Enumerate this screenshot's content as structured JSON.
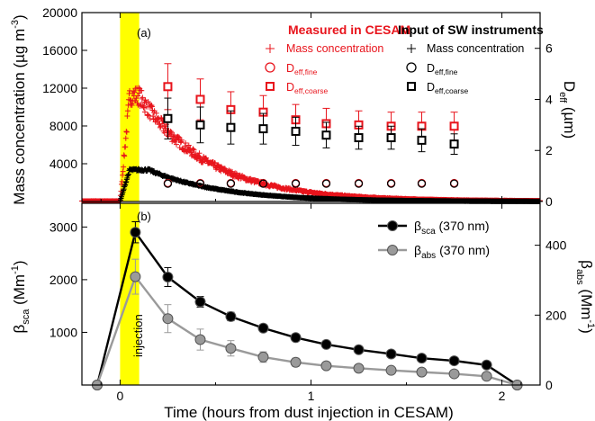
{
  "colors": {
    "measured": "#e8141c",
    "instrument": "#000000",
    "beta_abs": "#9a9a9a",
    "injection_band": "#ffff00"
  },
  "panel_a": {
    "tag": "(a)",
    "ylabel_left_text": "Mass concentration (µg m",
    "ylabel_left_sup": "-3",
    "ylabel_left_close": ")",
    "ylabel_right_main": "D",
    "ylabel_right_sub": "eff",
    "ylabel_right_unit": " (µm)",
    "legend_measured_title": "Measured in CESAM",
    "legend_input_title": "Input of SW instruments",
    "legend_mass": "Mass concentration",
    "legend_dfine_main": "D",
    "legend_dfine_sub": "eff,fine",
    "legend_dcoarse_main": "D",
    "legend_dcoarse_sub": "eff,coarse",
    "yticks_left": [
      "20000",
      "16000",
      "12000",
      "8000",
      "4000"
    ],
    "yticks_right": [
      "6",
      "4",
      "2",
      "0"
    ]
  },
  "panel_b": {
    "tag": "(b)",
    "ylabel_left_main": "β",
    "ylabel_left_sub": "sca",
    "ylabel_left_unit": " (Mm",
    "ylabel_left_sup": "-1",
    "ylabel_left_close": ")",
    "ylabel_right_main": "β",
    "ylabel_right_sub": "abs",
    "ylabel_right_unit": " (Mm",
    "ylabel_right_sup": "-1",
    "ylabel_right_close": ")",
    "legend_sca_main": "β",
    "legend_sca_sub": "sca",
    "legend_sca_rest": " (370 nm)",
    "legend_abs_main": "β",
    "legend_abs_sub": "abs",
    "legend_abs_rest": " (370 nm)",
    "injection_label": "injection",
    "yticks_left": [
      "3000",
      "2000",
      "1000"
    ],
    "yticks_right": [
      "400",
      "200",
      "0"
    ]
  },
  "xaxis": {
    "label": "Time (hours from dust injection in CESAM)",
    "ticks": [
      "0",
      "1",
      "2"
    ]
  },
  "chart_data": [
    {
      "type": "scatter",
      "panel": "a",
      "xlim": [
        -0.2,
        2.2
      ],
      "ylim_left": [
        0,
        20000
      ],
      "ylim_right": [
        0,
        7.4
      ],
      "injection_interval": [
        0,
        0.1
      ],
      "series": [
        {
          "name": "Mass concentration",
          "group": "Measured in CESAM",
          "axis": "left",
          "marker": "plus",
          "model": {
            "baseline": 50,
            "onset_start": 0.0,
            "onset_end": 0.05,
            "peak": 11200,
            "peak_time": 0.1,
            "decay_tau": 0.36,
            "sample_step": 0.0025,
            "noise": 0.09
          }
        },
        {
          "name": "Mass concentration",
          "group": "Input of SW instruments",
          "axis": "left",
          "marker": "plus",
          "model": {
            "baseline": 0,
            "onset_start": 0.0,
            "onset_end": 0.05,
            "peak": 3350,
            "peak_time": 0.15,
            "decay_tau": 0.38,
            "sample_step": 0.0025,
            "noise": 0.04
          }
        },
        {
          "name": "Deff,coarse",
          "group": "Measured in CESAM",
          "axis": "right",
          "marker": "square",
          "x": [
            0.25,
            0.42,
            0.58,
            0.75,
            0.92,
            1.08,
            1.25,
            1.42,
            1.58,
            1.75
          ],
          "y": [
            4.5,
            4.0,
            3.6,
            3.5,
            3.2,
            3.05,
            3.0,
            2.95,
            2.95,
            2.95
          ],
          "yerr": [
            0.9,
            0.8,
            0.7,
            0.65,
            0.6,
            0.6,
            0.55,
            0.55,
            0.55,
            0.55
          ]
        },
        {
          "name": "Deff,fine",
          "group": "Measured in CESAM",
          "axis": "right",
          "marker": "circle",
          "x": [
            0.25,
            0.42,
            0.58,
            0.75,
            0.92,
            1.08,
            1.25,
            1.42,
            1.58,
            1.75
          ],
          "y": [
            0.72,
            0.72,
            0.72,
            0.72,
            0.72,
            0.72,
            0.72,
            0.72,
            0.72,
            0.72
          ],
          "yerr": [
            0,
            0,
            0,
            0,
            0,
            0,
            0,
            0,
            0,
            0
          ]
        },
        {
          "name": "Deff,coarse",
          "group": "Input of SW instruments",
          "axis": "right",
          "marker": "square",
          "x": [
            0.25,
            0.42,
            0.58,
            0.75,
            0.92,
            1.08,
            1.25,
            1.42,
            1.58,
            1.75
          ],
          "y": [
            3.25,
            3.0,
            2.9,
            2.85,
            2.75,
            2.6,
            2.5,
            2.5,
            2.4,
            2.25
          ],
          "yerr": [
            0.8,
            0.7,
            0.65,
            0.6,
            0.55,
            0.5,
            0.45,
            0.45,
            0.45,
            0.4
          ]
        },
        {
          "name": "Deff,fine",
          "group": "Input of SW instruments",
          "axis": "right",
          "marker": "circle",
          "x": [
            0.25,
            0.42,
            0.58,
            0.75,
            0.92,
            1.08,
            1.25,
            1.42,
            1.58,
            1.75
          ],
          "y": [
            0.7,
            0.7,
            0.7,
            0.7,
            0.7,
            0.7,
            0.7,
            0.7,
            0.7,
            0.7
          ],
          "yerr": [
            0,
            0,
            0,
            0,
            0,
            0,
            0,
            0,
            0,
            0
          ]
        }
      ]
    },
    {
      "type": "line",
      "panel": "b",
      "xlim": [
        -0.2,
        2.2
      ],
      "ylim_left": [
        0,
        3450
      ],
      "ylim_right": [
        0,
        520
      ],
      "injection_interval": [
        0,
        0.1
      ],
      "series": [
        {
          "name": "βsca (370 nm)",
          "axis": "left",
          "x": [
            -0.12,
            0.08,
            0.25,
            0.42,
            0.58,
            0.75,
            0.92,
            1.08,
            1.25,
            1.42,
            1.58,
            1.75,
            1.92,
            2.08
          ],
          "y": [
            0,
            2900,
            2050,
            1580,
            1300,
            1080,
            900,
            770,
            670,
            590,
            510,
            460,
            380,
            0
          ],
          "yerr": [
            0,
            200,
            180,
            100,
            80,
            70,
            60,
            50,
            50,
            50,
            40,
            40,
            40,
            0
          ]
        },
        {
          "name": "βabs (370 nm)",
          "axis": "right",
          "x": [
            -0.12,
            0.08,
            0.25,
            0.42,
            0.58,
            0.75,
            0.92,
            1.08,
            1.25,
            1.42,
            1.58,
            1.75,
            1.92,
            2.08
          ],
          "y": [
            0,
            310,
            190,
            130,
            105,
            80,
            65,
            55,
            48,
            42,
            37,
            32,
            25,
            0
          ],
          "yerr": [
            0,
            50,
            40,
            30,
            22,
            15,
            12,
            10,
            8,
            8,
            7,
            7,
            6,
            0
          ]
        }
      ]
    }
  ]
}
